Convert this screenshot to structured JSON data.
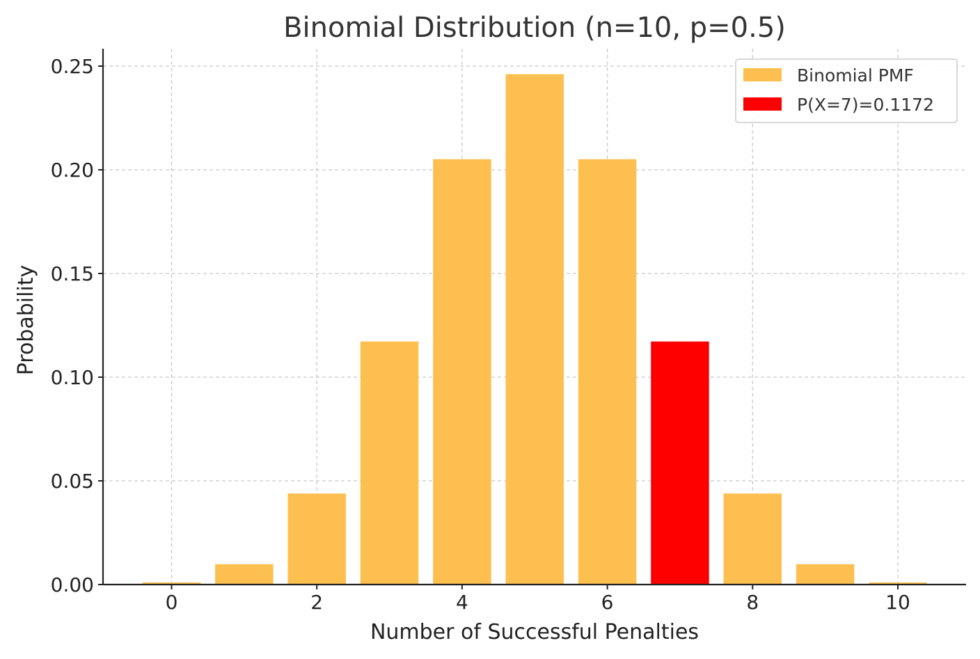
{
  "chart_data": {
    "type": "bar",
    "title": "Binomial Distribution (n=10, p=0.5)",
    "xlabel": "Number of Successful Penalties",
    "ylabel": "Probability",
    "categories": [
      0,
      1,
      2,
      3,
      4,
      5,
      6,
      7,
      8,
      9,
      10
    ],
    "series": [
      {
        "name": "Binomial PMF",
        "color": "#FDBF4F",
        "values": [
          0.001,
          0.0098,
          0.0439,
          0.1172,
          0.2051,
          0.2461,
          0.2051,
          0.1172,
          0.0439,
          0.0098,
          0.001
        ]
      },
      {
        "name": "P(X=7)=0.1172",
        "color": "#FF0000",
        "highlight_x": 7,
        "value": 0.1172
      }
    ],
    "xlim": [
      -1,
      11
    ],
    "ylim": [
      0,
      0.26
    ],
    "xticks": [
      "0",
      "2",
      "4",
      "6",
      "8",
      "10"
    ],
    "xtick_values": [
      0,
      2,
      4,
      6,
      8,
      10
    ],
    "yticks": [
      "0.00",
      "0.05",
      "0.10",
      "0.15",
      "0.20",
      "0.25"
    ],
    "ytick_values": [
      0,
      0.05,
      0.1,
      0.15,
      0.2,
      0.25
    ],
    "grid": true,
    "legend_position": "top-right"
  }
}
